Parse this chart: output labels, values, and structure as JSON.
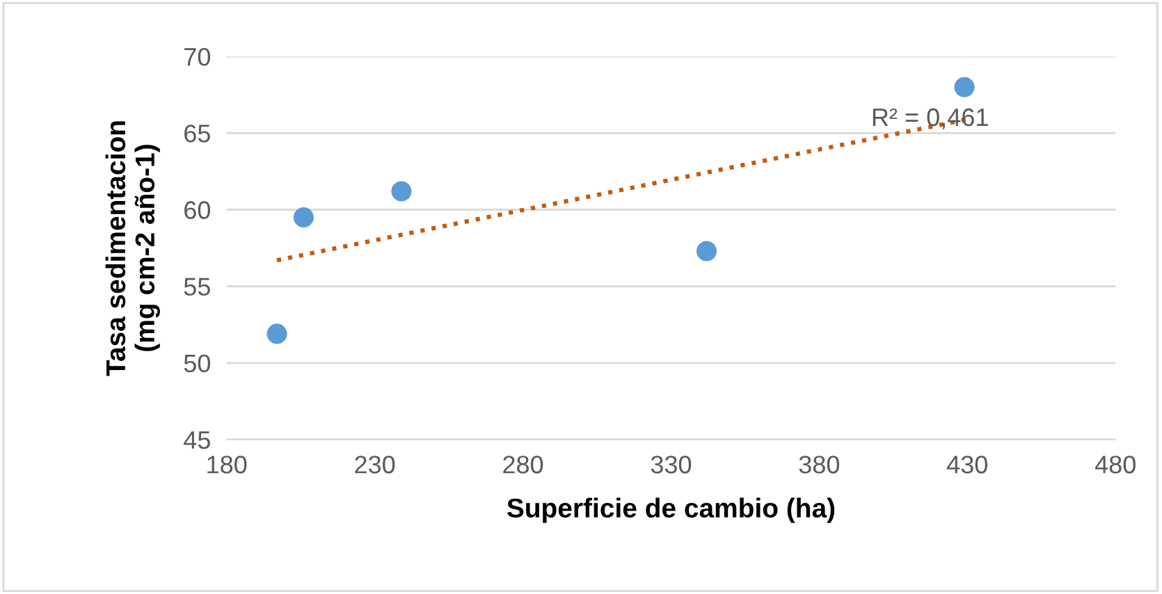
{
  "chart_data": {
    "type": "scatter",
    "xlabel": "Superficie de cambio (ha)",
    "ylabel": "Tasa sedimentacion\n(mg cm-2 año-1)",
    "xlim": [
      180,
      480
    ],
    "xticks": [
      180,
      230,
      280,
      330,
      380,
      430,
      480
    ],
    "ylim": [
      45,
      70
    ],
    "yticks": [
      45,
      50,
      55,
      60,
      65,
      70
    ],
    "grid": "y",
    "series": [
      {
        "color": "#5b9bd5",
        "marker": "circle",
        "x": [
          197,
          206,
          239,
          342,
          429
        ],
        "values": [
          51.9,
          59.5,
          61.2,
          57.3,
          68.0
        ]
      },
      {
        "type": "line",
        "color": "#c55a11",
        "marker": "none",
        "line_style": "dotted",
        "x": [
          197,
          430
        ],
        "values": [
          56.7,
          65.9
        ]
      }
    ],
    "annotations": [
      "R² = 0,461"
    ]
  }
}
